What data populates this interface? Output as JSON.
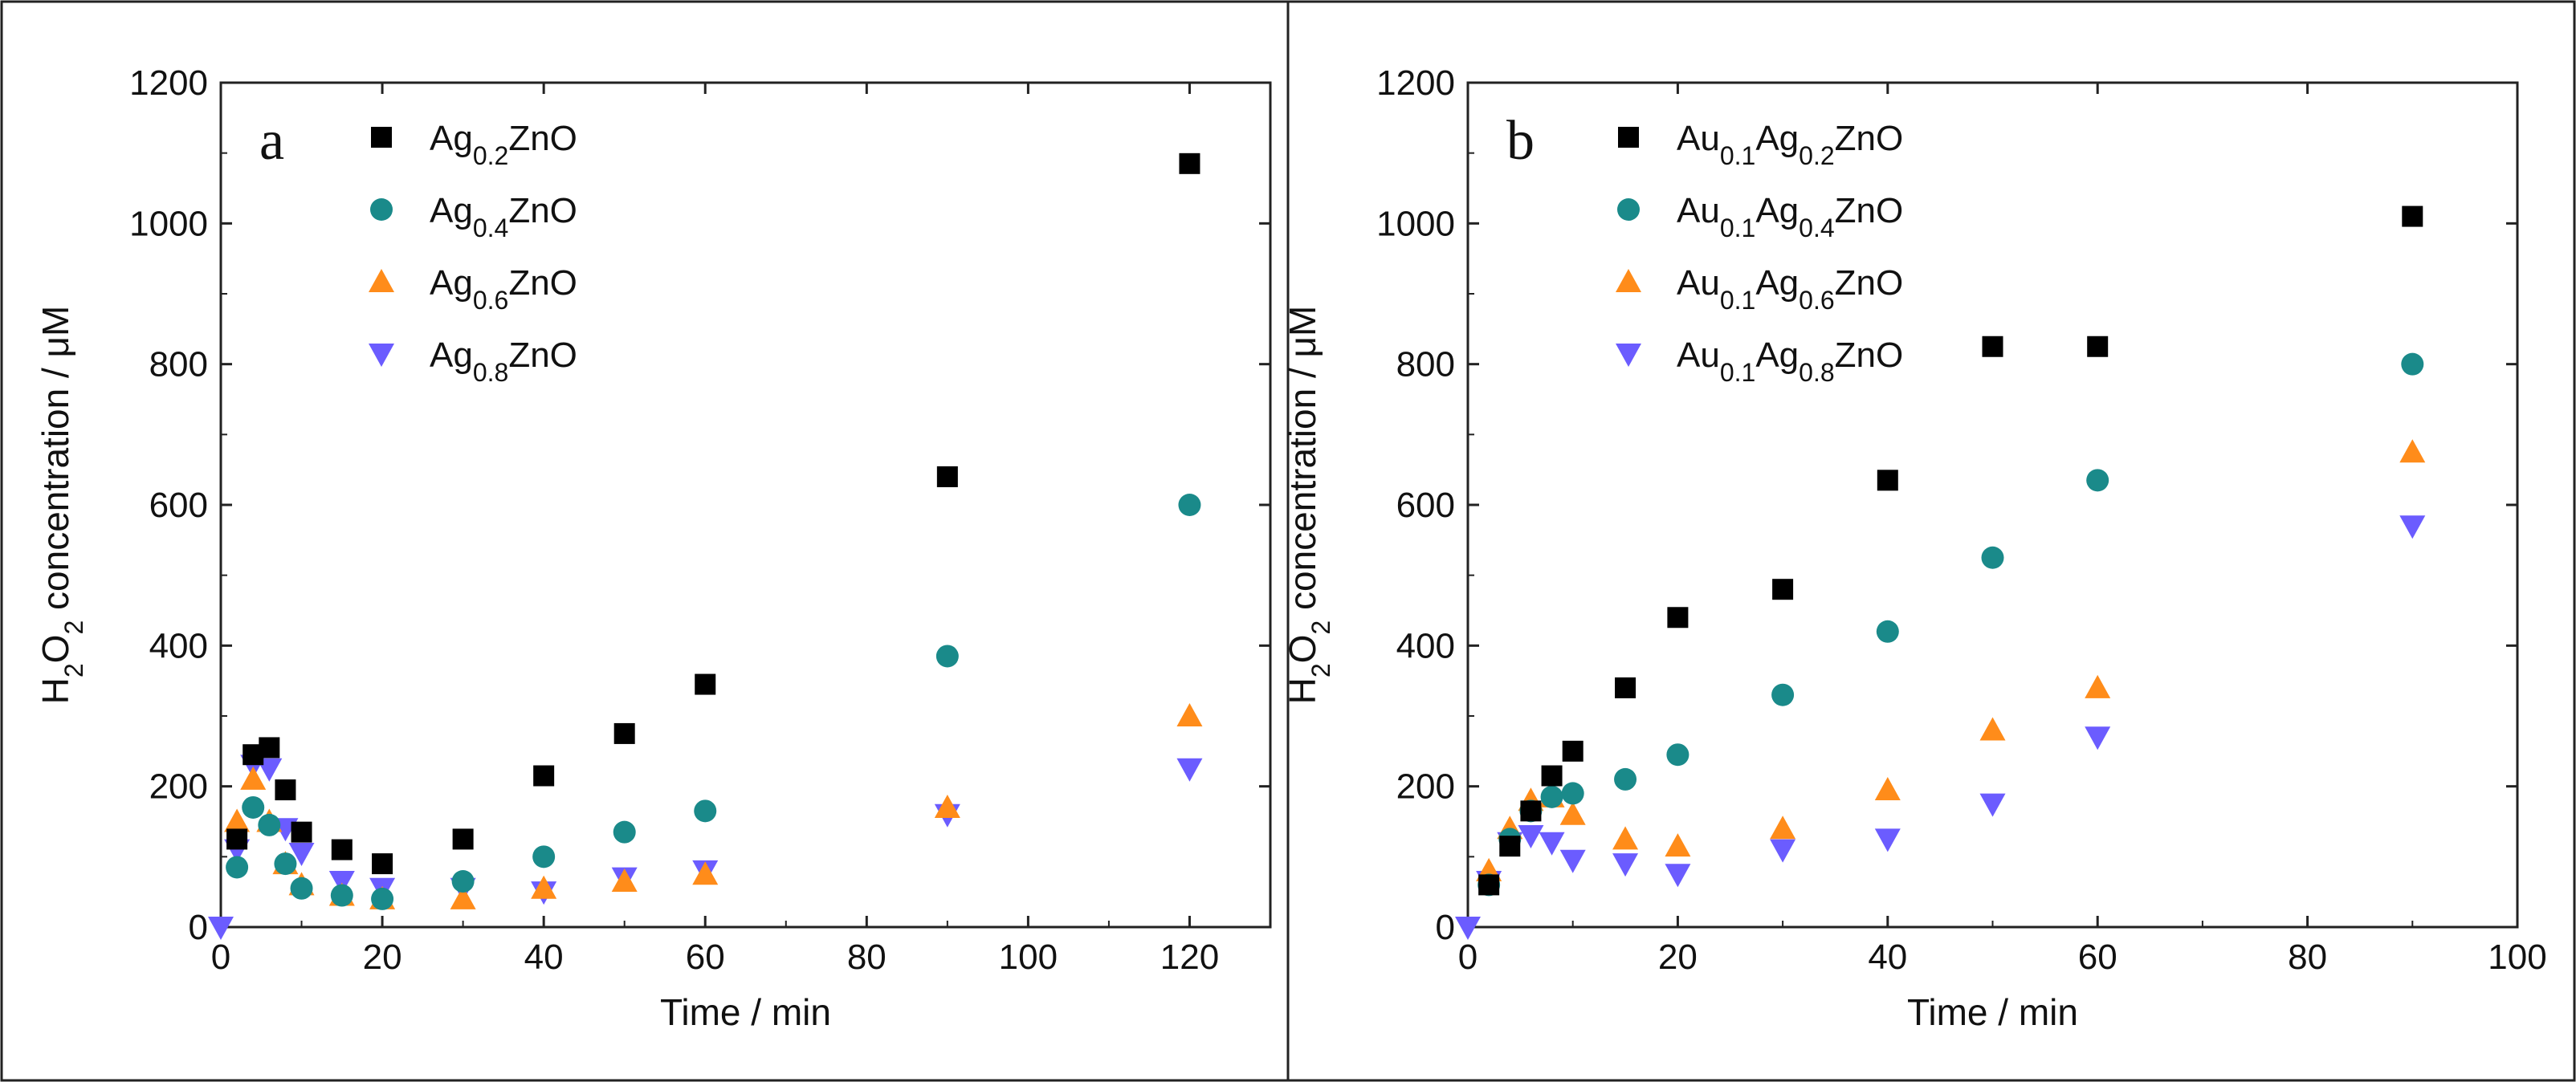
{
  "chart_data": [
    {
      "type": "scatter",
      "panel_label": "a",
      "xlabel": "Time / min",
      "ylabel": {
        "pre": "H",
        "sub1": "2",
        "mid": "O",
        "sub2": "2",
        "post": " concentration / μM"
      },
      "xlim": [
        0,
        130
      ],
      "ylim": [
        0,
        1200
      ],
      "xticks": [
        0,
        20,
        40,
        60,
        80,
        100,
        120
      ],
      "yticks": [
        0,
        200,
        400,
        600,
        800,
        1000,
        1200
      ],
      "legend_position": "top-left",
      "series": [
        {
          "name": "Ag0.2ZnO",
          "legend": {
            "base": "Ag",
            "sub": "0.2",
            "tail": "ZnO"
          },
          "marker": "square",
          "color": "#000000",
          "x": [
            2,
            4,
            6,
            8,
            10,
            15,
            20,
            30,
            40,
            50,
            60,
            90,
            120
          ],
          "y": [
            125,
            245,
            255,
            195,
            135,
            110,
            90,
            125,
            215,
            275,
            345,
            640,
            1085
          ]
        },
        {
          "name": "Ag0.4ZnO",
          "legend": {
            "base": "Ag",
            "sub": "0.4",
            "tail": "ZnO"
          },
          "marker": "circle",
          "color": "#1a8a8a",
          "x": [
            2,
            4,
            6,
            8,
            10,
            15,
            20,
            30,
            40,
            50,
            60,
            90,
            120
          ],
          "y": [
            85,
            170,
            145,
            90,
            55,
            45,
            40,
            65,
            100,
            135,
            165,
            385,
            600
          ]
        },
        {
          "name": "Ag0.6ZnO",
          "legend": {
            "base": "Ag",
            "sub": "0.6",
            "tail": "ZnO"
          },
          "marker": "triangle-up",
          "color": "#ff8c1a",
          "x": [
            2,
            4,
            6,
            8,
            10,
            15,
            20,
            30,
            40,
            50,
            60,
            90,
            120
          ],
          "y": [
            150,
            210,
            150,
            90,
            60,
            45,
            40,
            40,
            55,
            65,
            75,
            170,
            300
          ]
        },
        {
          "name": "Ag0.8ZnO",
          "legend": {
            "base": "Ag",
            "sub": "0.8",
            "tail": "ZnO"
          },
          "marker": "triangle-down",
          "color": "#6b5cff",
          "x": [
            0,
            2,
            4,
            6,
            8,
            10,
            15,
            20,
            30,
            40,
            50,
            60,
            90,
            120
          ],
          "y": [
            0,
            110,
            230,
            225,
            140,
            105,
            65,
            55,
            55,
            50,
            70,
            80,
            160,
            225
          ]
        }
      ]
    },
    {
      "type": "scatter",
      "panel_label": "b",
      "xlabel": "Time / min",
      "ylabel": {
        "pre": "H",
        "sub1": "2",
        "mid": "O",
        "sub2": "2",
        "post": " concentration / μM"
      },
      "xlim": [
        0,
        100
      ],
      "ylim": [
        0,
        1200
      ],
      "xticks": [
        0,
        20,
        40,
        60,
        80,
        100
      ],
      "yticks": [
        0,
        200,
        400,
        600,
        800,
        1000,
        1200
      ],
      "legend_position": "top-left",
      "series": [
        {
          "name": "Au0.1Ag0.2ZnO",
          "legend": {
            "base": "Au",
            "sub": "0.1",
            "base2": "Ag",
            "sub2": "0.2",
            "tail": "ZnO"
          },
          "marker": "square",
          "color": "#000000",
          "x": [
            2,
            4,
            6,
            8,
            10,
            15,
            20,
            30,
            40,
            50,
            60,
            90
          ],
          "y": [
            60,
            115,
            165,
            215,
            250,
            340,
            440,
            480,
            635,
            825,
            825,
            1010
          ]
        },
        {
          "name": "Au0.1Ag0.4ZnO",
          "legend": {
            "base": "Au",
            "sub": "0.1",
            "base2": "Ag",
            "sub2": "0.4",
            "tail": "ZnO"
          },
          "marker": "circle",
          "color": "#1a8a8a",
          "x": [
            2,
            4,
            6,
            8,
            10,
            15,
            20,
            30,
            40,
            50,
            60,
            90
          ],
          "y": [
            60,
            125,
            165,
            185,
            190,
            210,
            245,
            330,
            420,
            525,
            635,
            800
          ]
        },
        {
          "name": "Au0.1Ag0.6ZnO",
          "legend": {
            "base": "Au",
            "sub": "0.1",
            "base2": "Ag",
            "sub2": "0.6",
            "tail": "ZnO"
          },
          "marker": "triangle-up",
          "color": "#ff8c1a",
          "x": [
            2,
            4,
            6,
            8,
            10,
            15,
            20,
            30,
            40,
            50,
            60,
            90
          ],
          "y": [
            80,
            140,
            180,
            185,
            160,
            125,
            115,
            140,
            195,
            280,
            340,
            675
          ]
        },
        {
          "name": "Au0.1Ag0.8ZnO",
          "legend": {
            "base": "Au",
            "sub": "0.1",
            "base2": "Ag",
            "sub2": "0.8",
            "tail": "ZnO"
          },
          "marker": "triangle-down",
          "color": "#6b5cff",
          "x": [
            0,
            2,
            4,
            6,
            8,
            10,
            15,
            20,
            30,
            40,
            50,
            60,
            90
          ],
          "y": [
            0,
            65,
            120,
            130,
            120,
            95,
            90,
            75,
            110,
            125,
            175,
            270,
            570
          ]
        }
      ]
    }
  ]
}
